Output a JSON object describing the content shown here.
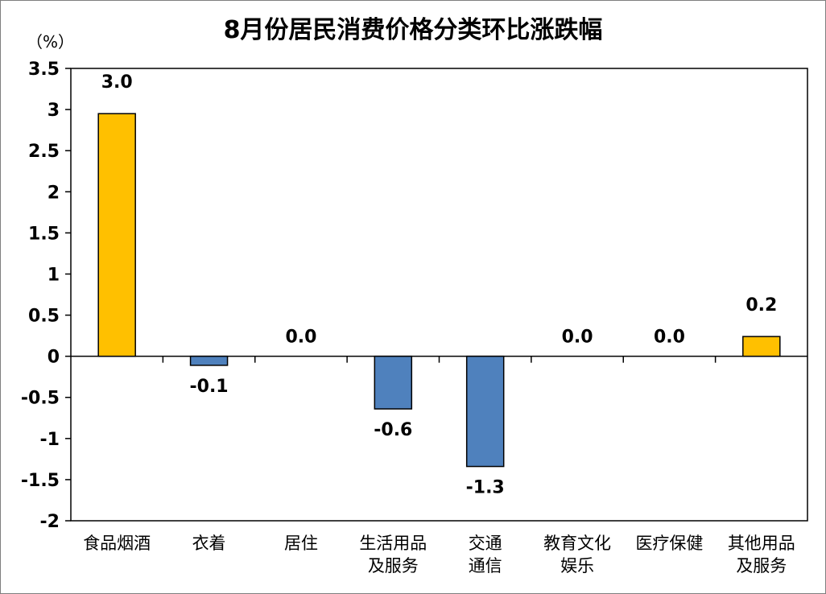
{
  "chart_data": {
    "type": "bar",
    "title": "8月份居民消费价格分类环比涨跌幅",
    "unit_label": "（%）",
    "categories": [
      [
        "食品烟酒"
      ],
      [
        "衣着"
      ],
      [
        "居住"
      ],
      [
        "生活用品",
        "及服务"
      ],
      [
        "交通",
        "通信"
      ],
      [
        "教育文化",
        "娱乐"
      ],
      [
        "医疗保健"
      ],
      [
        "其他用品",
        "及服务"
      ]
    ],
    "values": [
      2.95,
      -0.11,
      0.0,
      -0.64,
      -1.34,
      0.0,
      0.0,
      0.24
    ],
    "data_labels": [
      "3.0",
      "-0.1",
      "0.0",
      "-0.6",
      "-1.3",
      "0.0",
      "0.0",
      "0.2"
    ],
    "ylim": [
      -2,
      3.5
    ],
    "yticks": [
      "3.5",
      "3",
      "2.5",
      "2",
      "1.5",
      "1",
      "0.5",
      "0",
      "-0.5",
      "-1",
      "-1.5",
      "-2"
    ],
    "ytick_values": [
      3.5,
      3,
      2.5,
      2,
      1.5,
      1,
      0.5,
      0,
      -0.5,
      -1,
      -1.5,
      -2
    ],
    "grid": false,
    "legend": "none",
    "colors": {
      "positive": "#FFC000",
      "negative": "#4F81BD",
      "axis": "#000000"
    }
  }
}
